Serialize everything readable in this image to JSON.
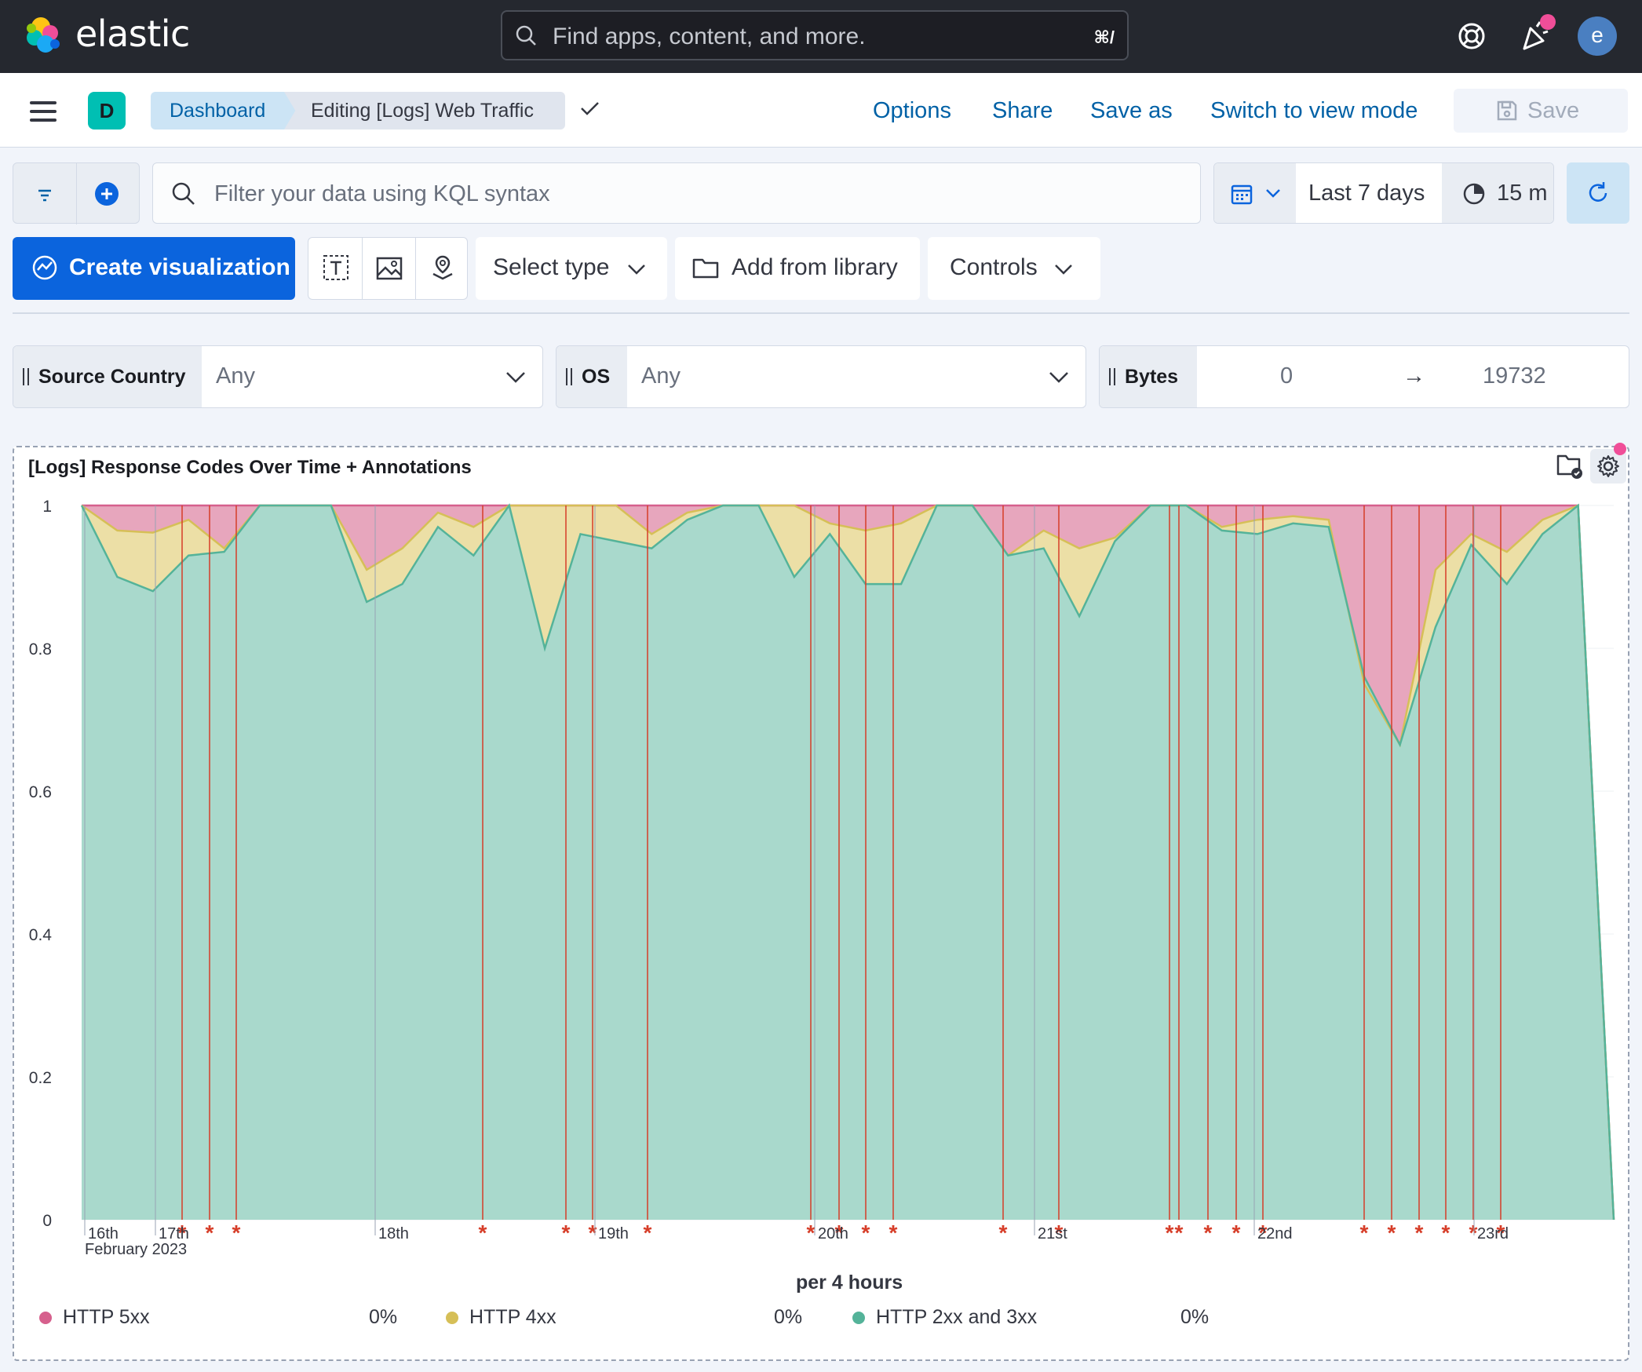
{
  "header": {
    "logo_text": "elastic",
    "search_placeholder": "Find apps, content, and more.",
    "search_shortcut": "⌘/",
    "avatar_initial": "e"
  },
  "appbar": {
    "space_initial": "D",
    "breadcrumbs": [
      "Dashboard",
      "Editing [Logs] Web Traffic"
    ],
    "links": [
      "Options",
      "Share",
      "Save as",
      "Switch to view mode"
    ],
    "save_label": "Save"
  },
  "query": {
    "placeholder": "Filter your data using KQL syntax",
    "time_range": "Last 7 days",
    "refresh_interval": "15 m"
  },
  "toolbar": {
    "create_label": "Create visualization",
    "select_type": "Select type",
    "add_library": "Add from library",
    "controls": "Controls"
  },
  "controls": [
    {
      "label": "Source Country",
      "value": "Any"
    },
    {
      "label": "OS",
      "value": "Any"
    },
    {
      "label": "Bytes",
      "min": "0",
      "arrow": "→",
      "max": "19732"
    }
  ],
  "panel": {
    "title": "[Logs] Response Codes Over Time + Annotations"
  },
  "colors": {
    "http5xx": "#e7a6bd",
    "http4xx": "#ecdfa6",
    "http2xx": "#a9d9cc",
    "annotation": "#d63d28",
    "accent": "#0b64dd"
  },
  "chart_data": {
    "type": "area",
    "stacked_percentage": true,
    "xlabel": "per 4 hours",
    "ylim": [
      0,
      1
    ],
    "y_ticks": [
      "0",
      "0.2",
      "0.4",
      "0.6",
      "0.8",
      "1"
    ],
    "x_tick_labels": [
      "16th",
      "17th",
      "18th",
      "19th",
      "20th",
      "21st",
      "22nd",
      "23rd"
    ],
    "x_sub_label": "February 2023",
    "series": [
      {
        "name": "HTTP 5xx",
        "value_label": "0%"
      },
      {
        "name": "HTTP 4xx",
        "value_label": "0%"
      },
      {
        "name": "HTTP 2xx and 3xx",
        "value_label": "0%"
      }
    ],
    "points": [
      {
        "g": 1.0,
        "y": 1.0
      },
      {
        "g": 0.9,
        "y": 0.965
      },
      {
        "g": 0.88,
        "y": 0.962
      },
      {
        "g": 0.93,
        "y": 0.98
      },
      {
        "g": 0.935,
        "y": 0.94
      },
      {
        "g": 1.0,
        "y": 1.0
      },
      {
        "g": 1.0,
        "y": 1.0
      },
      {
        "g": 1.0,
        "y": 1.0
      },
      {
        "g": 0.865,
        "y": 0.91
      },
      {
        "g": 0.89,
        "y": 0.94
      },
      {
        "g": 0.97,
        "y": 0.99
      },
      {
        "g": 0.93,
        "y": 0.97
      },
      {
        "g": 1.0,
        "y": 1.0
      },
      {
        "g": 0.8,
        "y": 1.0
      },
      {
        "g": 0.96,
        "y": 1.0
      },
      {
        "g": 0.95,
        "y": 1.0
      },
      {
        "g": 0.94,
        "y": 0.96
      },
      {
        "g": 0.98,
        "y": 0.99
      },
      {
        "g": 1.0,
        "y": 1.0
      },
      {
        "g": 1.0,
        "y": 1.0
      },
      {
        "g": 0.9,
        "y": 1.0
      },
      {
        "g": 0.96,
        "y": 0.975
      },
      {
        "g": 0.89,
        "y": 0.965
      },
      {
        "g": 0.89,
        "y": 0.975
      },
      {
        "g": 1.0,
        "y": 1.0
      },
      {
        "g": 1.0,
        "y": 1.0
      },
      {
        "g": 0.93,
        "y": 0.93
      },
      {
        "g": 0.94,
        "y": 0.965
      },
      {
        "g": 0.845,
        "y": 0.94
      },
      {
        "g": 0.95,
        "y": 0.955
      },
      {
        "g": 1.0,
        "y": 1.0
      },
      {
        "g": 1.0,
        "y": 1.0
      },
      {
        "g": 0.965,
        "y": 0.97
      },
      {
        "g": 0.96,
        "y": 0.98
      },
      {
        "g": 0.975,
        "y": 0.985
      },
      {
        "g": 0.97,
        "y": 0.98
      },
      {
        "g": 0.76,
        "y": 0.75
      },
      {
        "g": 0.665,
        "y": 0.665
      },
      {
        "g": 0.83,
        "y": 0.91
      },
      {
        "g": 0.945,
        "y": 0.96
      },
      {
        "g": 0.89,
        "y": 0.935
      },
      {
        "g": 0.96,
        "y": 0.98
      },
      {
        "g": 1.0,
        "y": 1.0
      },
      {
        "g": 0.0,
        "y": 0.0
      }
    ],
    "annotations": 27
  }
}
